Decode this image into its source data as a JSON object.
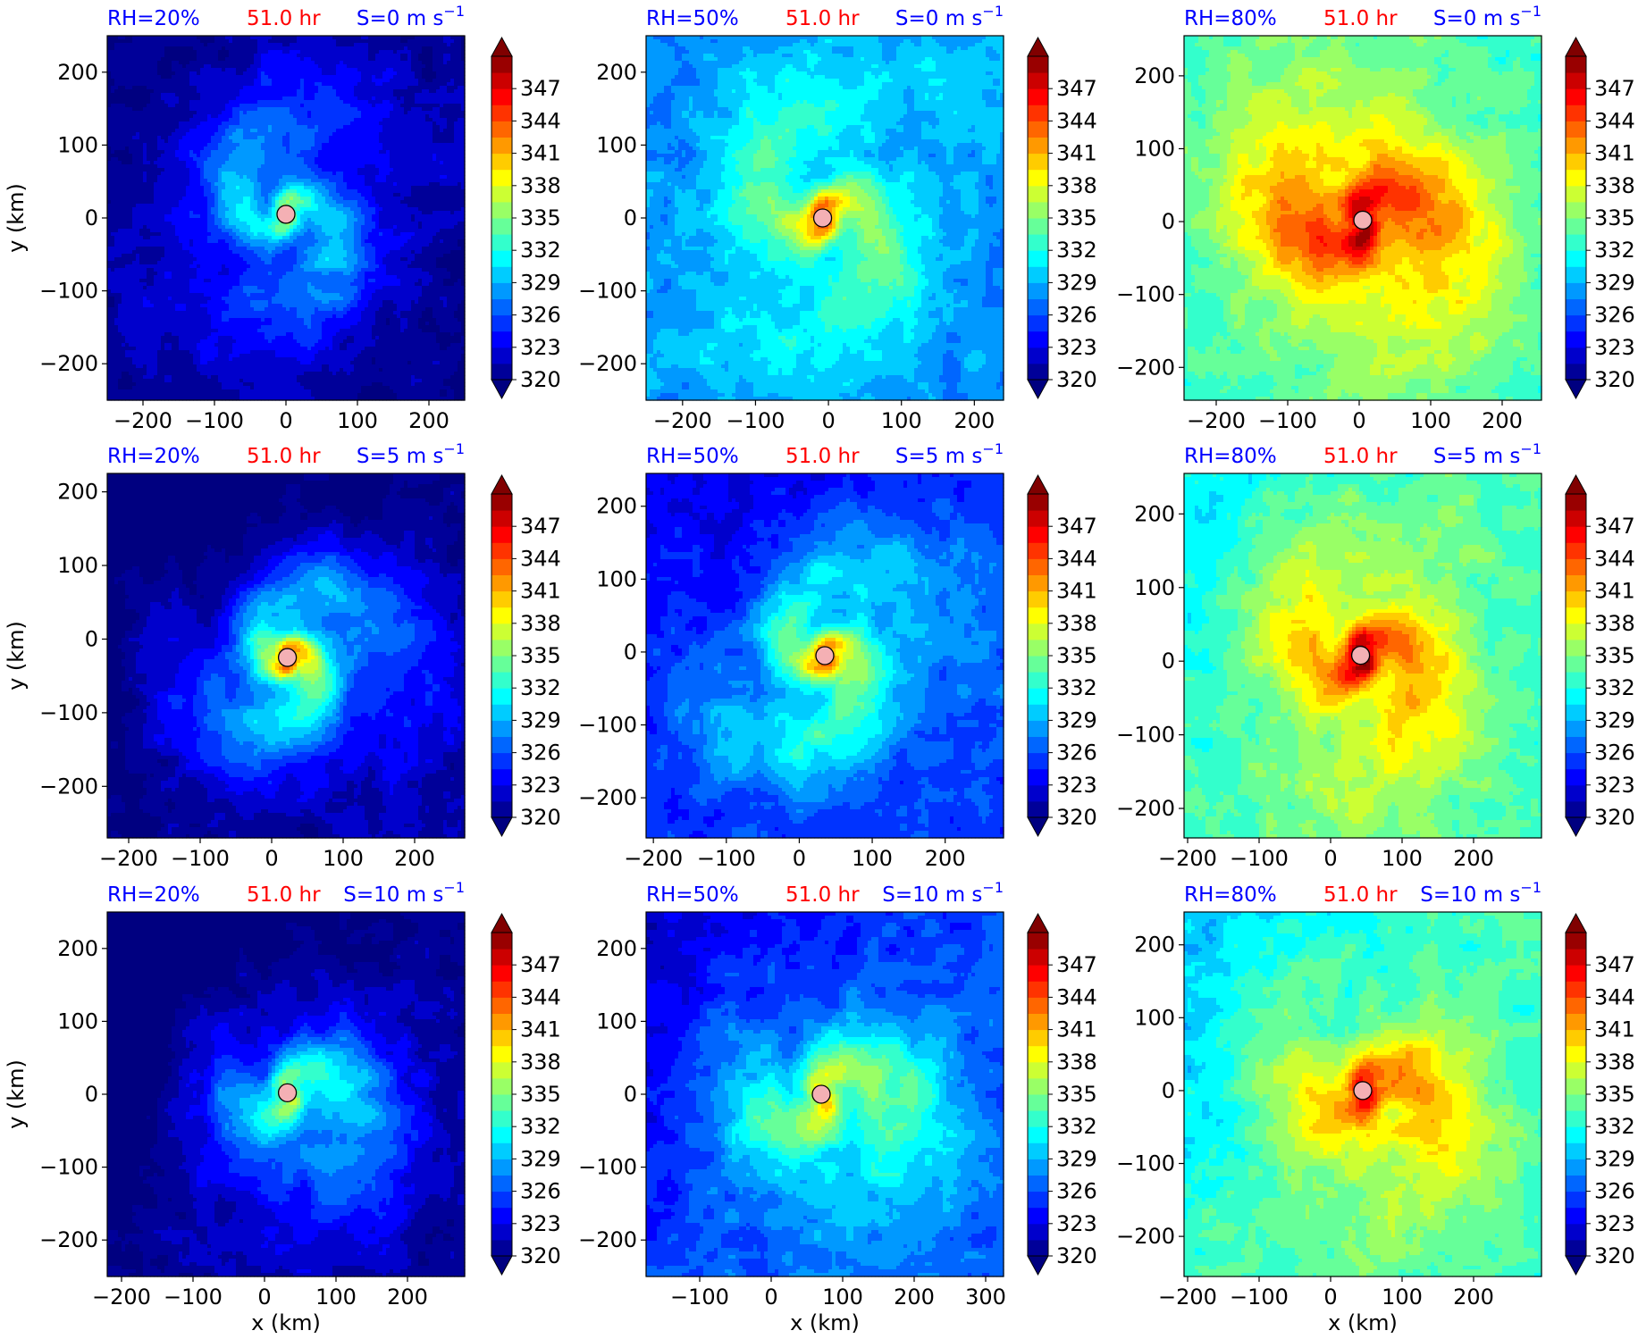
{
  "figure": {
    "layout": "3x3 grid of equivalent potential temperature panels",
    "colormap": "jet",
    "colorbar": {
      "min": 320,
      "max": 350,
      "step": 1.5,
      "extend": "both",
      "tick_values": [
        320,
        323,
        326,
        329,
        332,
        335,
        338,
        341,
        344,
        347
      ],
      "tick_labels": [
        "320",
        "323",
        "326",
        "329",
        "332",
        "335",
        "338",
        "341",
        "344",
        "347"
      ]
    },
    "xlabel": "x (km)",
    "ylabel": "y (km)",
    "marker": {
      "shape": "circle",
      "fill": "#f4b0b4",
      "edge": "#000000"
    },
    "text_colors": {
      "rh": "#0000ff",
      "time": "#ff0000",
      "shear": "#0000ff"
    }
  },
  "chart_data": [
    {
      "type": "heatmap",
      "panel": "row1-col1",
      "rh_label": "RH=20%",
      "time_label": "51.0 hr",
      "shear_label": "S=0 m s",
      "shear_exp": "−1",
      "xlim": [
        -250,
        250
      ],
      "ylim": [
        -250,
        250
      ],
      "xticks": [
        -200,
        -100,
        0,
        100,
        200
      ],
      "xtick_labels": [
        "−200",
        "−100",
        "0",
        "100",
        "200"
      ],
      "yticks": [
        -200,
        -100,
        0,
        100,
        200
      ],
      "ytick_labels": [
        "−200",
        "−100",
        "0",
        "100",
        "200"
      ],
      "xlabel": "",
      "ylabel": "y (km)",
      "center": {
        "x": 0,
        "y": 5
      },
      "background_theta_e": 320,
      "core_theta_e": 335,
      "ring_theta_e": 329,
      "spiral_turn": 1.6,
      "asymmetry": 0
    },
    {
      "type": "heatmap",
      "panel": "row1-col2",
      "rh_label": "RH=50%",
      "time_label": "51.0 hr",
      "shear_label": "S=0 m s",
      "shear_exp": "−1",
      "xlim": [
        -250,
        240
      ],
      "ylim": [
        -250,
        250
      ],
      "xticks": [
        -200,
        -100,
        0,
        100,
        200
      ],
      "xtick_labels": [
        "−200",
        "−100",
        "0",
        "100",
        "200"
      ],
      "yticks": [
        -200,
        -100,
        0,
        100,
        200
      ],
      "ytick_labels": [
        "−200",
        "−100",
        "0",
        "100",
        "200"
      ],
      "xlabel": "",
      "ylabel": "",
      "center": {
        "x": -8,
        "y": 0
      },
      "background_theta_e": 328,
      "core_theta_e": 343,
      "ring_theta_e": 334,
      "spiral_turn": 1.5,
      "asymmetry": 0
    },
    {
      "type": "heatmap",
      "panel": "row1-col3",
      "rh_label": "RH=80%",
      "time_label": "51.0 hr",
      "shear_label": "S=0 m s",
      "shear_exp": "−1",
      "xlim": [
        -245,
        255
      ],
      "ylim": [
        -245,
        255
      ],
      "xticks": [
        -200,
        -100,
        0,
        100,
        200
      ],
      "xtick_labels": [
        "−200",
        "−100",
        "0",
        "100",
        "200"
      ],
      "yticks": [
        -200,
        -100,
        0,
        100,
        200
      ],
      "ytick_labels": [
        "−200",
        "−100",
        "0",
        "100",
        "200"
      ],
      "xlabel": "",
      "ylabel": "",
      "center": {
        "x": 5,
        "y": 2
      },
      "background_theta_e": 333,
      "core_theta_e": 349,
      "ring_theta_e": 344,
      "spiral_turn": 1.2,
      "asymmetry": 0
    },
    {
      "type": "heatmap",
      "panel": "row2-col1",
      "rh_label": "RH=20%",
      "time_label": "51.0 hr",
      "shear_label": "S=5 m s",
      "shear_exp": "−1",
      "xlim": [
        -230,
        270
      ],
      "ylim": [
        -270,
        225
      ],
      "xticks": [
        -200,
        -100,
        0,
        100,
        200
      ],
      "xtick_labels": [
        "−200",
        "−100",
        "0",
        "100",
        "200"
      ],
      "yticks": [
        -200,
        -100,
        0,
        100,
        200
      ],
      "ytick_labels": [
        "−200",
        "−100",
        "0",
        "100",
        "200"
      ],
      "xlabel": "",
      "ylabel": "y (km)",
      "center": {
        "x": 22,
        "y": -25
      },
      "background_theta_e": 320,
      "core_theta_e": 343,
      "ring_theta_e": 331,
      "spiral_turn": 2.0,
      "asymmetry": 0.5
    },
    {
      "type": "heatmap",
      "panel": "row2-col2",
      "rh_label": "RH=50%",
      "time_label": "51.0 hr",
      "shear_label": "S=5 m s",
      "shear_exp": "−1",
      "xlim": [
        -210,
        280
      ],
      "ylim": [
        -255,
        245
      ],
      "xticks": [
        -200,
        -100,
        0,
        100,
        200
      ],
      "xtick_labels": [
        "−200",
        "−100",
        "0",
        "100",
        "200"
      ],
      "yticks": [
        -200,
        -100,
        0,
        100,
        200
      ],
      "ytick_labels": [
        "−200",
        "−100",
        "0",
        "100",
        "200"
      ],
      "xlabel": "",
      "ylabel": "",
      "center": {
        "x": 35,
        "y": -5
      },
      "background_theta_e": 325,
      "core_theta_e": 344,
      "ring_theta_e": 333,
      "spiral_turn": 1.8,
      "asymmetry": 0.4
    },
    {
      "type": "heatmap",
      "panel": "row2-col3",
      "rh_label": "RH=80%",
      "time_label": "51.0 hr",
      "shear_label": "S=5 m s",
      "shear_exp": "−1",
      "xlim": [
        -205,
        295
      ],
      "ylim": [
        -240,
        255
      ],
      "xticks": [
        -200,
        -100,
        0,
        100,
        200
      ],
      "xtick_labels": [
        "−200",
        "−100",
        "0",
        "100",
        "200"
      ],
      "yticks": [
        -200,
        -100,
        0,
        100,
        200
      ],
      "ytick_labels": [
        "−200",
        "−100",
        "0",
        "100",
        "200"
      ],
      "xlabel": "",
      "ylabel": "",
      "center": {
        "x": 42,
        "y": 8
      },
      "background_theta_e": 333,
      "core_theta_e": 349,
      "ring_theta_e": 341,
      "spiral_turn": 1.4,
      "asymmetry": 0.3
    },
    {
      "type": "heatmap",
      "panel": "row3-col1",
      "rh_label": "RH=20%",
      "time_label": "51.0 hr",
      "shear_label": "S=10 m s",
      "shear_exp": "−1",
      "xlim": [
        -220,
        280
      ],
      "ylim": [
        -250,
        250
      ],
      "xticks": [
        -200,
        -100,
        0,
        100,
        200
      ],
      "xtick_labels": [
        "−200",
        "−100",
        "0",
        "100",
        "200"
      ],
      "yticks": [
        -200,
        -100,
        0,
        100,
        200
      ],
      "ytick_labels": [
        "−200",
        "−100",
        "0",
        "100",
        "200"
      ],
      "xlabel": "x (km)",
      "ylabel": "y (km)",
      "center": {
        "x": 32,
        "y": 2
      },
      "background_theta_e": 320,
      "core_theta_e": 335,
      "ring_theta_e": 330,
      "spiral_turn": 1.3,
      "asymmetry": 0.8
    },
    {
      "type": "heatmap",
      "panel": "row3-col2",
      "rh_label": "RH=50%",
      "time_label": "51.0 hr",
      "shear_label": "S=10 m s",
      "shear_exp": "−1",
      "xlim": [
        -175,
        325
      ],
      "ylim": [
        -250,
        250
      ],
      "xticks": [
        -100,
        0,
        100,
        200,
        300
      ],
      "xtick_labels": [
        "−100",
        "0",
        "100",
        "200",
        "300"
      ],
      "yticks": [
        -200,
        -100,
        0,
        100,
        200
      ],
      "ytick_labels": [
        "−200",
        "−100",
        "0",
        "100",
        "200"
      ],
      "xlabel": "x (km)",
      "ylabel": "",
      "center": {
        "x": 70,
        "y": 0
      },
      "background_theta_e": 326,
      "core_theta_e": 338,
      "ring_theta_e": 334,
      "spiral_turn": 1.2,
      "asymmetry": 0.7
    },
    {
      "type": "heatmap",
      "panel": "row3-col3",
      "rh_label": "RH=80%",
      "time_label": "51.0 hr",
      "shear_label": "S=10 m s",
      "shear_exp": "−1",
      "xlim": [
        -205,
        295
      ],
      "ylim": [
        -255,
        245
      ],
      "xticks": [
        -200,
        -100,
        0,
        100,
        200
      ],
      "xtick_labels": [
        "−200",
        "−100",
        "0",
        "100",
        "200"
      ],
      "yticks": [
        -200,
        -100,
        0,
        100,
        200
      ],
      "ytick_labels": [
        "−200",
        "−100",
        "0",
        "100",
        "200"
      ],
      "xlabel": "x (km)",
      "ylabel": "",
      "center": {
        "x": 45,
        "y": 0
      },
      "background_theta_e": 333,
      "core_theta_e": 346,
      "ring_theta_e": 340,
      "spiral_turn": 1.3,
      "asymmetry": 0.6
    }
  ]
}
